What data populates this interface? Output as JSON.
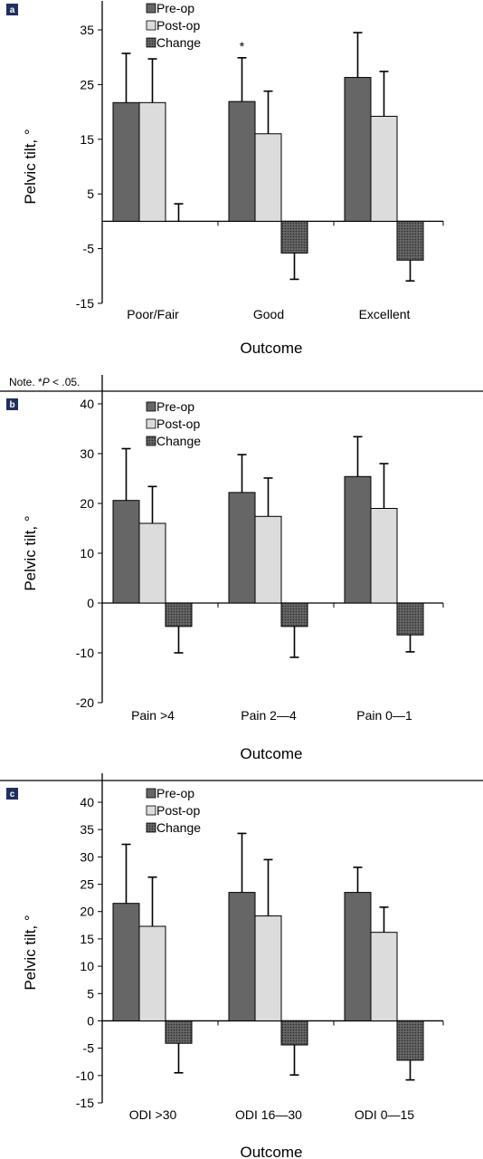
{
  "note": {
    "prefix": "Note. *",
    "p": "P",
    "suffix": " < .05."
  },
  "colors": {
    "preop": "#666666",
    "postop": "#dcdcdc",
    "change": "#4a4a4a",
    "panel_tag_bg": "#1f2f5e",
    "axis": "#000000"
  },
  "legend_labels": [
    "Pre-op",
    "Post-op",
    "Change"
  ],
  "chart_data": [
    {
      "panel": "a",
      "type": "bar",
      "xlabel": "Outcome",
      "ylabel": "Pelvic tilt, °",
      "ylim": [
        -15,
        35
      ],
      "yticks": [
        -15,
        -5,
        5,
        15,
        25,
        35
      ],
      "categories": [
        "Poor/Fair",
        "Good",
        "Excellent"
      ],
      "series": [
        {
          "name": "Pre-op",
          "values": [
            21.7,
            21.9,
            26.3
          ],
          "errors": [
            9.0,
            8.0,
            8.2
          ]
        },
        {
          "name": "Post-op",
          "values": [
            21.7,
            16.0,
            19.2
          ],
          "errors": [
            8.0,
            7.8,
            8.2
          ]
        },
        {
          "name": "Change",
          "values": [
            0.0,
            -5.8,
            -7.1
          ],
          "errors": [
            3.2,
            4.8,
            3.8
          ]
        }
      ],
      "annotations": [
        {
          "text": "*",
          "category": "Good",
          "series": "Pre-op"
        }
      ],
      "legend": "top-center"
    },
    {
      "panel": "b",
      "type": "bar",
      "xlabel": "Outcome",
      "ylabel": "Pelvic tilt, °",
      "ylim": [
        -20,
        40
      ],
      "yticks": [
        -20,
        -10,
        0,
        10,
        20,
        30,
        40
      ],
      "categories": [
        "Pain >4",
        "Pain 2—4",
        "Pain 0—1"
      ],
      "series": [
        {
          "name": "Pre-op",
          "values": [
            20.6,
            22.2,
            25.4
          ],
          "errors": [
            10.4,
            7.6,
            8.0
          ]
        },
        {
          "name": "Post-op",
          "values": [
            16.0,
            17.4,
            19.0
          ],
          "errors": [
            7.4,
            7.7,
            9.0
          ]
        },
        {
          "name": "Change",
          "values": [
            -4.7,
            -4.7,
            -6.4
          ],
          "errors": [
            5.3,
            6.2,
            3.4
          ]
        }
      ],
      "legend": "top-center"
    },
    {
      "panel": "c",
      "type": "bar",
      "xlabel": "Outcome",
      "ylabel": "Pelvic tilt, °",
      "ylim": [
        -15,
        40
      ],
      "yticks": [
        -15,
        -10,
        -5,
        0,
        5,
        10,
        15,
        20,
        25,
        30,
        35,
        40
      ],
      "categories": [
        "ODI >30",
        "ODI 16—30",
        "ODI 0—15"
      ],
      "series": [
        {
          "name": "Pre-op",
          "values": [
            21.5,
            23.5,
            23.5
          ],
          "errors": [
            10.8,
            10.8,
            4.6
          ]
        },
        {
          "name": "Post-op",
          "values": [
            17.3,
            19.2,
            16.2
          ],
          "errors": [
            9.0,
            10.3,
            4.6
          ]
        },
        {
          "name": "Change",
          "values": [
            -4.1,
            -4.4,
            -7.2
          ],
          "errors": [
            5.4,
            5.5,
            3.6
          ]
        }
      ],
      "legend": "top-center"
    }
  ]
}
